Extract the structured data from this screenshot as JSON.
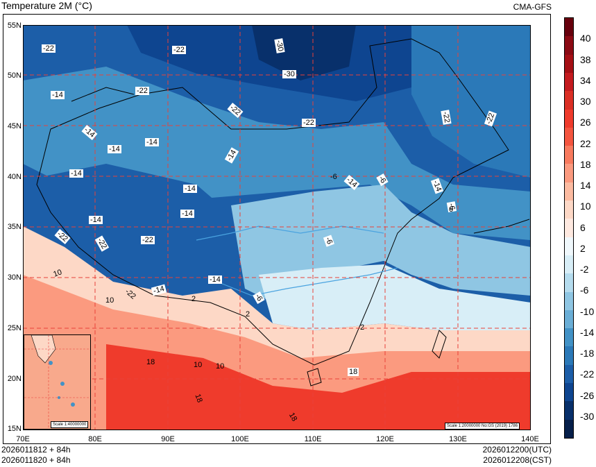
{
  "header": {
    "title": "Temperature  2M (°C)",
    "model": "CMA-GFS"
  },
  "map": {
    "lat_labels": [
      "55N",
      "50N",
      "45N",
      "40N",
      "35N",
      "30N",
      "25N",
      "20N",
      "15N"
    ],
    "lon_labels": [
      "70E",
      "80E",
      "90E",
      "100E",
      "110E",
      "120E",
      "130E",
      "140E"
    ],
    "contour_labels": [
      "-22",
      "-22",
      "-30",
      "-30",
      "-14",
      "-22",
      "-22",
      "-22",
      "-22",
      "-22",
      "-14",
      "-14",
      "-14",
      "-14",
      "-14",
      "-14",
      "-14",
      "-14",
      "-14",
      "-6",
      "-14",
      "-6",
      "-22",
      "-22",
      "-22",
      "-14",
      "-14",
      "-6",
      "-6",
      "-14",
      "10",
      "10",
      "2",
      "-6",
      "2",
      "18",
      "10",
      "10",
      "18",
      "18",
      "18",
      "6",
      "-6"
    ],
    "inset_scale": "Scale 1:40000000",
    "main_scale": "Scale 1:20000000 No:GS (2019) 1786"
  },
  "colorbar": {
    "labels": [
      "40",
      "38",
      "34",
      "30",
      "26",
      "22",
      "18",
      "14",
      "10",
      "6",
      "2",
      "-2",
      "-6",
      "-10",
      "-14",
      "-18",
      "-22",
      "-26",
      "-30"
    ],
    "colors": [
      "#67000d",
      "#8b0a14",
      "#a50f15",
      "#c41b1f",
      "#db2f25",
      "#ef3b2c",
      "#f4553f",
      "#f87a5e",
      "#fb9a7f",
      "#fcbba1",
      "#fdd8c6",
      "#fee9e0",
      "#f0f8fc",
      "#d8eef7",
      "#b5dcee",
      "#8fc6e3",
      "#6aaed6",
      "#4292c6",
      "#2b79b8",
      "#1c5ea8",
      "#0e4590",
      "#08306b",
      "#061f4a"
    ]
  },
  "footer": {
    "left_line1": "2026011812 + 84h",
    "left_line2": "2026011820 + 84h",
    "right_line1": "2026012200(UTC)",
    "right_line2": "2026012208(CST)"
  }
}
